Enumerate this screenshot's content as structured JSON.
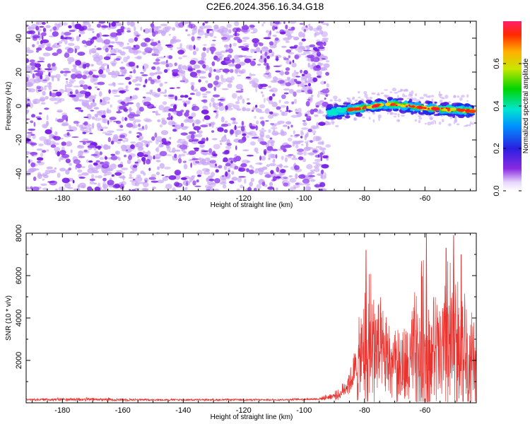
{
  "title": "C2E6.2024.356.16.34.G18",
  "colors": {
    "snr_line": "#e8332f",
    "noise": "#7a1fe6",
    "noise_light": "#c9a8f5"
  },
  "chart_data": [
    {
      "type": "heatmap",
      "title": "",
      "xlabel": "Height of straight line (km)",
      "ylabel": "Frequency (Hz)",
      "xlim": [
        -192,
        -43
      ],
      "ylim": [
        -50,
        50
      ],
      "xticks": [
        "-180",
        "-160",
        "-140",
        "-120",
        "-100",
        "-80",
        "-60"
      ],
      "yticks": [
        "-40",
        "-20",
        "0",
        "20",
        "40"
      ],
      "colorbar": {
        "label": "Normalized spectral amplitude",
        "range": [
          0,
          0.8
        ],
        "ticks": [
          "0.0",
          "0.2",
          "0.4",
          "0.6"
        ],
        "colormap": "rainbow"
      },
      "noise_region": {
        "x_range": [
          -192,
          -92
        ],
        "freq_range": [
          -50,
          50
        ]
      },
      "signal_band": {
        "x_range": [
          -92,
          -44
        ],
        "centre_freq": [
          {
            "x": -92,
            "f": -4
          },
          {
            "x": -88,
            "f": -3
          },
          {
            "x": -84,
            "f": -2
          },
          {
            "x": -80,
            "f": -1
          },
          {
            "x": -74,
            "f": 1
          },
          {
            "x": -70,
            "f": 1
          },
          {
            "x": -66,
            "f": 0
          },
          {
            "x": -60,
            "f": -1
          },
          {
            "x": -52,
            "f": -2
          },
          {
            "x": -44,
            "f": -3
          }
        ],
        "half_width_hz": 4
      }
    },
    {
      "type": "line",
      "title": "",
      "xlabel": "Height of straight line (km)",
      "ylabel": "SNR (10 * v/v)",
      "xlim": [
        -192,
        -43
      ],
      "ylim": [
        0,
        8000
      ],
      "xticks": [
        "-180",
        "-160",
        "-140",
        "-120",
        "-100",
        "-80",
        "-60"
      ],
      "yticks": [
        "2000",
        "4000",
        "6000",
        "8000"
      ],
      "series": [
        {
          "envelope": [
            {
              "x": -192,
              "base": 150,
              "amp": 60
            },
            {
              "x": -175,
              "base": 160,
              "amp": 120
            },
            {
              "x": -150,
              "base": 140,
              "amp": 60
            },
            {
              "x": -110,
              "base": 140,
              "amp": 60
            },
            {
              "x": -95,
              "base": 180,
              "amp": 80
            },
            {
              "x": -88,
              "base": 400,
              "amp": 300
            },
            {
              "x": -84,
              "base": 1200,
              "amp": 1000
            },
            {
              "x": -80,
              "base": 2400,
              "amp": 3500
            },
            {
              "x": -78,
              "base": 2600,
              "amp": 5000
            },
            {
              "x": -74,
              "base": 2200,
              "amp": 2500
            },
            {
              "x": -70,
              "base": 1800,
              "amp": 2600
            },
            {
              "x": -66,
              "base": 1500,
              "amp": 2500
            },
            {
              "x": -60,
              "base": 2800,
              "amp": 5500
            },
            {
              "x": -58,
              "base": 2500,
              "amp": 3000
            },
            {
              "x": -54,
              "base": 2000,
              "amp": 4500
            },
            {
              "x": -50,
              "base": 2500,
              "amp": 5800
            },
            {
              "x": -46,
              "base": 2200,
              "amp": 3500
            },
            {
              "x": -43,
              "base": 1500,
              "amp": 2000
            }
          ],
          "peaks": [
            {
              "x": -79.5,
              "y": 7200
            },
            {
              "x": -59.5,
              "y": 8000
            },
            {
              "x": -50.5,
              "y": 7900
            },
            {
              "x": -53.0,
              "y": 7300
            },
            {
              "x": -48.0,
              "y": 7000
            }
          ]
        }
      ]
    }
  ]
}
